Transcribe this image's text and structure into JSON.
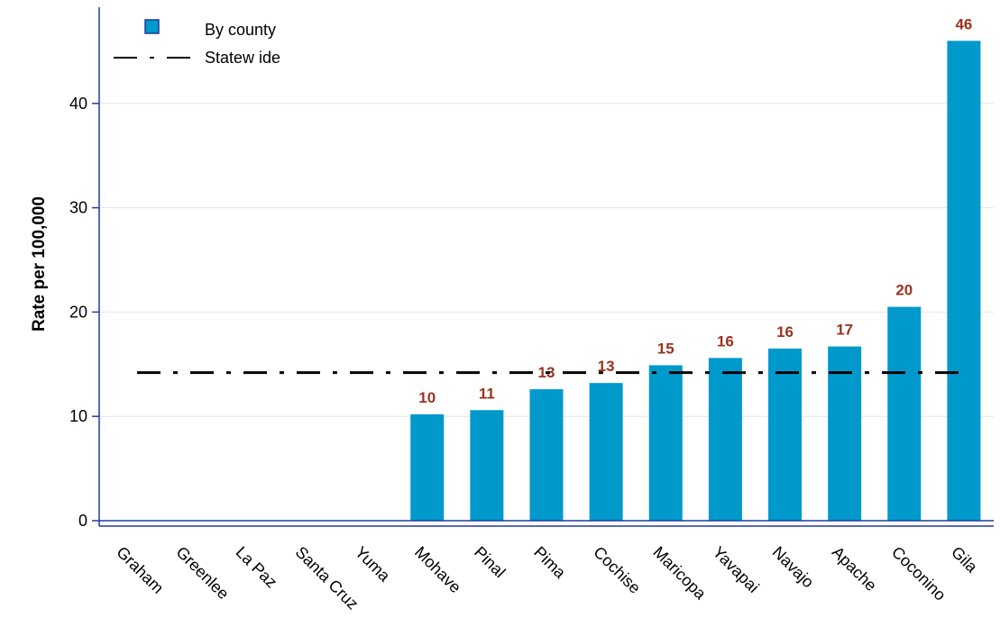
{
  "chart_data": {
    "type": "bar",
    "title": "",
    "xlabel": "",
    "ylabel": "Rate per 100,000",
    "ylim": [
      0,
      46
    ],
    "yticks": [
      0,
      10,
      20,
      30,
      40
    ],
    "grid": true,
    "legend": {
      "placement": "top-left",
      "entries": [
        "By county",
        "Statew ide"
      ]
    },
    "categories": [
      "Graham",
      "Greenlee",
      "La Paz",
      "Santa Cruz",
      "Yuma",
      "Mohave",
      "Pinal",
      "Pima",
      "Cochise",
      "Maricopa",
      "Yavapai",
      "Navajo",
      "Apache",
      "Coconino",
      "Gila"
    ],
    "series": [
      {
        "name": "By county",
        "type": "bar",
        "values": [
          null,
          null,
          null,
          null,
          null,
          10.2,
          10.6,
          12.6,
          13.2,
          14.9,
          15.6,
          16.5,
          16.7,
          20.5,
          46.0
        ],
        "labels": [
          "",
          "",
          "",
          "",
          "",
          "10",
          "11",
          "13",
          "13",
          "15",
          "16",
          "16",
          "17",
          "20",
          "46"
        ]
      },
      {
        "name": "Statew ide",
        "type": "reference-line",
        "value": 14.2
      }
    ],
    "colors": {
      "bar": "#0099CC",
      "bar_legend_border": "#1F3A93",
      "data_label": "#993322",
      "axis": "#1F3AA6",
      "grid": "#E4E4E4",
      "reference_line": "#000000"
    }
  }
}
